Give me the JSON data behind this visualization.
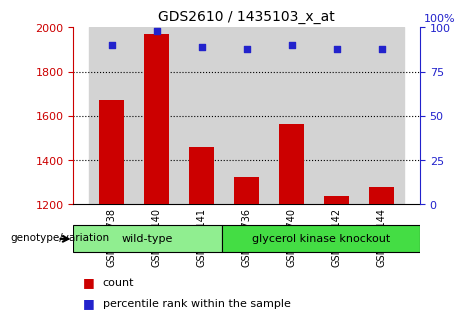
{
  "title": "GDS2610 / 1435103_x_at",
  "samples": [
    "GSM104738",
    "GSM105140",
    "GSM105141",
    "GSM104736",
    "GSM104740",
    "GSM105142",
    "GSM105144"
  ],
  "counts": [
    1670,
    1970,
    1460,
    1325,
    1565,
    1240,
    1280
  ],
  "percentile_ranks": [
    90,
    98,
    89,
    88,
    90,
    88,
    88
  ],
  "groups": [
    {
      "label": "wild-type",
      "indices": [
        0,
        1,
        2
      ],
      "color": "#90EE90"
    },
    {
      "label": "glycerol kinase knockout",
      "indices": [
        3,
        4,
        5,
        6
      ],
      "color": "#44DD44"
    }
  ],
  "ylim_left": [
    1200,
    2000
  ],
  "ylim_right": [
    0,
    100
  ],
  "yticks_left": [
    1200,
    1400,
    1600,
    1800,
    2000
  ],
  "yticks_right": [
    0,
    25,
    50,
    75,
    100
  ],
  "bar_color": "#CC0000",
  "dot_color": "#2222CC",
  "bar_width": 0.55,
  "grid_dotted_at": [
    1400,
    1600,
    1800
  ],
  "bg_color": "#D3D3D3",
  "legend_count_color": "#CC0000",
  "legend_pct_color": "#2222CC",
  "legend_count_label": "count",
  "legend_pct_label": "percentile rank within the sample",
  "genotype_label": "genotype/variation",
  "right_axis_label_color": "#2222CC",
  "left_axis_label_color": "#CC0000",
  "top_right_label": "100%"
}
